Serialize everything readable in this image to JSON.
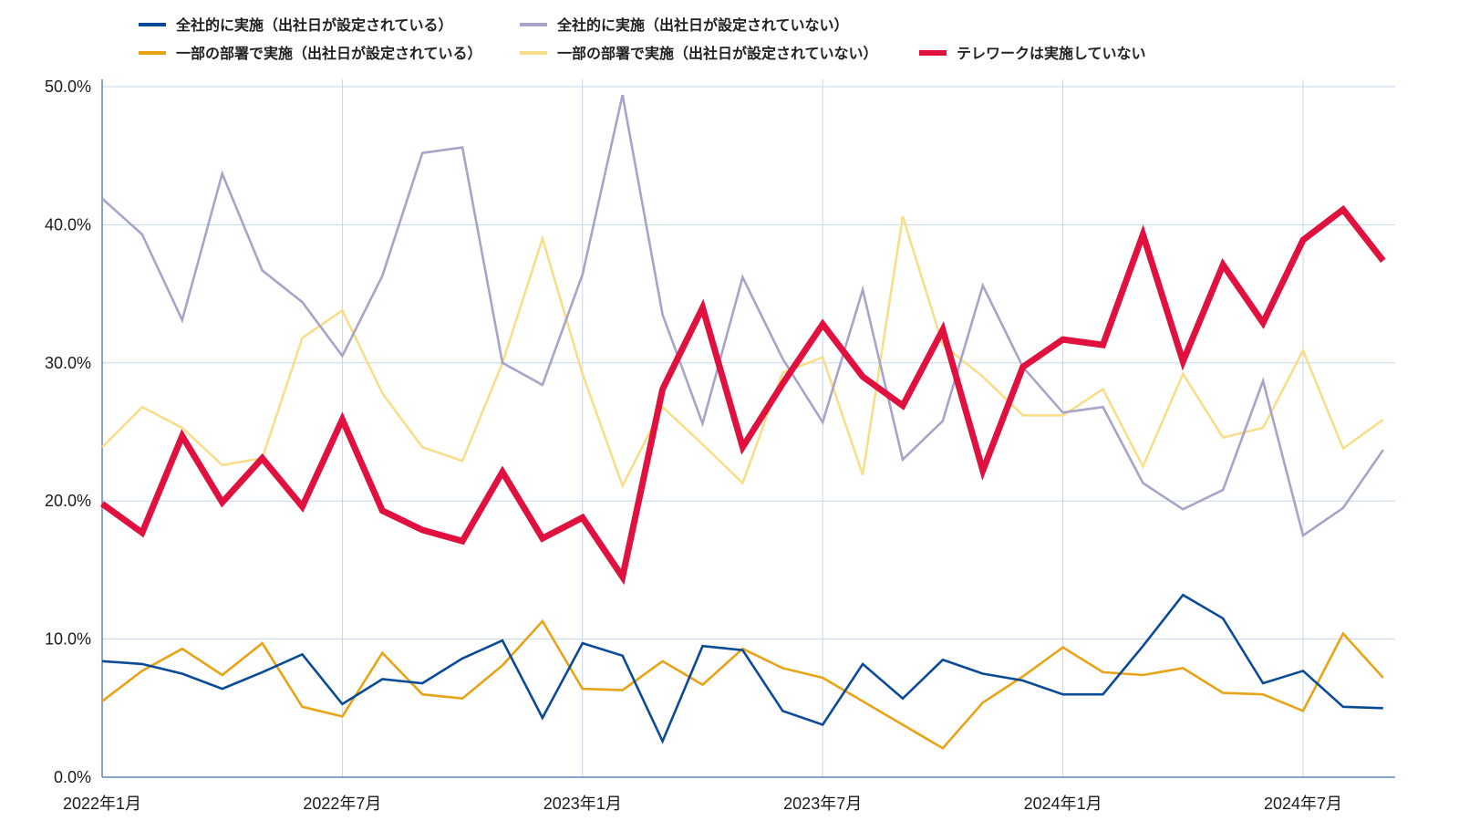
{
  "chart_data": {
    "type": "line",
    "title": "",
    "xlabel": "",
    "ylabel": "",
    "ylim": [
      0,
      50
    ],
    "grid": true,
    "legend_position": "top",
    "x": [
      "2022-01",
      "2022-02",
      "2022-03",
      "2022-04",
      "2022-05",
      "2022-06",
      "2022-07",
      "2022-08",
      "2022-09",
      "2022-10",
      "2022-11",
      "2022-12",
      "2023-01",
      "2023-02",
      "2023-03",
      "2023-04",
      "2023-05",
      "2023-06",
      "2023-07",
      "2023-08",
      "2023-09",
      "2023-10",
      "2023-11",
      "2023-12",
      "2024-01",
      "2024-02",
      "2024-03",
      "2024-04",
      "2024-05",
      "2024-06",
      "2024-07",
      "2024-08",
      "2024-09"
    ],
    "x_tick_labels": [
      {
        "x": "2022-01",
        "label": "2022年1月"
      },
      {
        "x": "2022-07",
        "label": "2022年7月"
      },
      {
        "x": "2023-01",
        "label": "2023年1月"
      },
      {
        "x": "2023-07",
        "label": "2023年7月"
      },
      {
        "x": "2024-01",
        "label": "2024年1月"
      },
      {
        "x": "2024-07",
        "label": "2024年7月"
      }
    ],
    "y_ticks": [
      0,
      10,
      20,
      30,
      40,
      50
    ],
    "y_tick_labels": [
      "0.0%",
      "10.0%",
      "20.0%",
      "30.0%",
      "40.0%",
      "50.0%"
    ],
    "series": [
      {
        "name": "全社的に実施（出社日が設定されている）",
        "color": "#0b4a96",
        "values": [
          8.4,
          8.2,
          7.5,
          6.4,
          7.6,
          8.9,
          5.3,
          7.1,
          6.8,
          8.6,
          9.9,
          4.3,
          9.7,
          8.8,
          2.6,
          9.5,
          9.2,
          4.8,
          3.8,
          8.2,
          5.7,
          8.5,
          7.5,
          7.0,
          6.0,
          6.0,
          9.5,
          13.2,
          11.5,
          6.8,
          7.7,
          5.1,
          5.0
        ]
      },
      {
        "name": "全社的に実施（出社日が設定されていない）",
        "color": "#a8a3c8",
        "values": [
          41.9,
          39.3,
          33.1,
          43.7,
          36.7,
          34.4,
          30.5,
          36.3,
          45.2,
          45.6,
          30.0,
          28.4,
          36.4,
          49.4,
          33.5,
          25.6,
          36.2,
          30.3,
          25.7,
          35.3,
          23.0,
          25.8,
          35.6,
          29.7,
          26.4,
          26.8,
          21.3,
          19.4,
          20.8,
          28.7,
          17.5,
          19.5,
          23.7
        ]
      },
      {
        "name": "一部の部署で実施（出社日が設定されている）",
        "color": "#e8a317",
        "values": [
          5.5,
          7.7,
          9.3,
          7.4,
          9.7,
          5.1,
          4.4,
          9.0,
          6.0,
          5.7,
          8.1,
          11.3,
          6.4,
          6.3,
          8.4,
          6.7,
          9.3,
          7.9,
          7.2,
          5.5,
          3.8,
          2.1,
          5.4,
          7.3,
          9.4,
          7.6,
          7.4,
          7.9,
          6.1,
          6.0,
          4.8,
          10.4,
          7.2
        ]
      },
      {
        "name": "一部の部署で実施（出社日が設定されていない）",
        "color": "#f9de8a",
        "values": [
          23.9,
          26.8,
          25.3,
          22.6,
          23.1,
          31.8,
          33.8,
          27.8,
          23.9,
          22.9,
          30.0,
          39.0,
          29.2,
          21.1,
          26.8,
          24.1,
          21.3,
          29.3,
          30.4,
          21.9,
          40.6,
          31.3,
          29.0,
          26.2,
          26.2,
          28.1,
          22.5,
          29.2,
          24.6,
          25.3,
          30.9,
          23.8,
          25.9
        ]
      },
      {
        "name": "テレワークは実施していない",
        "color": "#e0103f",
        "values": [
          19.8,
          17.7,
          24.7,
          19.9,
          23.1,
          19.6,
          25.9,
          19.3,
          17.9,
          17.1,
          22.1,
          17.3,
          18.8,
          14.5,
          28.1,
          34.0,
          23.9,
          28.5,
          32.8,
          29.0,
          26.9,
          32.4,
          22.2,
          29.7,
          31.7,
          31.3,
          39.3,
          30.1,
          37.1,
          32.9,
          38.9,
          41.1,
          37.4
        ]
      }
    ]
  }
}
